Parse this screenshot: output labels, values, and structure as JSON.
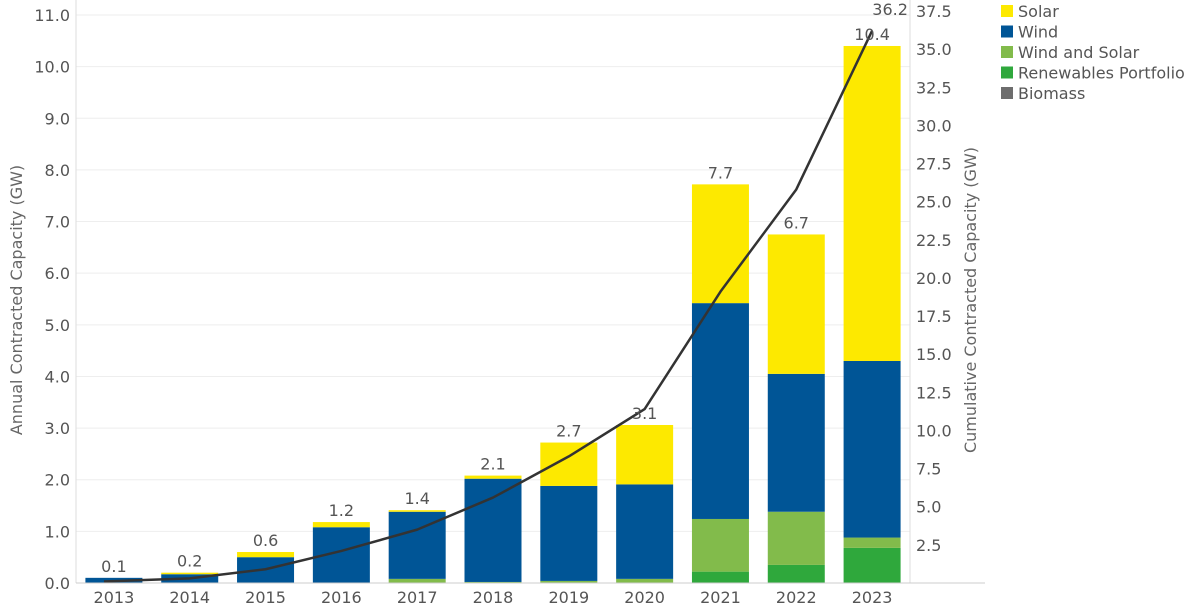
{
  "chart_data": {
    "type": "bar",
    "stacked": true,
    "categories": [
      "2013",
      "2014",
      "2015",
      "2016",
      "2017",
      "2018",
      "2019",
      "2020",
      "2021",
      "2022",
      "2023"
    ],
    "series": [
      {
        "name": "Biomass",
        "color": "#6d6d6d",
        "values": [
          0,
          0,
          0,
          0,
          0,
          0,
          0,
          0,
          0,
          0,
          0
        ]
      },
      {
        "name": "Renewables Portfolio",
        "color": "#2fa83c",
        "values": [
          0,
          0,
          0,
          0,
          0,
          0,
          0,
          0,
          0.22,
          0.35,
          0.68
        ]
      },
      {
        "name": "Wind and Solar",
        "color": "#82bb4b",
        "values": [
          0,
          0,
          0,
          0,
          0.08,
          0.02,
          0.04,
          0.08,
          1.02,
          1.03,
          0.2
        ]
      },
      {
        "name": "Wind",
        "color": "#005596",
        "values": [
          0.1,
          0.17,
          0.5,
          1.08,
          1.3,
          2.0,
          1.84,
          1.83,
          4.18,
          2.67,
          3.42
        ]
      },
      {
        "name": "Solar",
        "color": "#fde900",
        "values": [
          0,
          0.03,
          0.1,
          0.1,
          0.03,
          0.06,
          0.84,
          1.15,
          2.3,
          2.7,
          6.1
        ]
      }
    ],
    "totals": [
      "0.1",
      "0.2",
      "0.6",
      "1.2",
      "1.4",
      "2.1",
      "2.7",
      "3.1",
      "7.7",
      "6.7",
      "10.4"
    ],
    "line": {
      "name": "Cumulative Contracted Capacity",
      "color": "#333333",
      "values": [
        0.1,
        0.3,
        0.9,
        2.1,
        3.5,
        5.6,
        8.3,
        11.4,
        19.1,
        25.8,
        36.2
      ],
      "end_label": "36.2"
    },
    "ylabel": "Annual Contracted Capacity (GW)",
    "y2label": "Cumulative Contracted Capacity (GW)",
    "ylim": [
      0,
      11.0
    ],
    "y2lim": [
      0,
      37.5
    ],
    "yticks": [
      "0.0",
      "1.0",
      "2.0",
      "3.0",
      "4.0",
      "5.0",
      "6.0",
      "7.0",
      "8.0",
      "9.0",
      "10.0",
      "11.0"
    ],
    "y2ticks": [
      "2.5",
      "5.0",
      "7.5",
      "10.0",
      "12.5",
      "15.0",
      "17.5",
      "20.0",
      "22.5",
      "25.0",
      "27.5",
      "30.0",
      "32.5",
      "35.0",
      "37.5"
    ],
    "grid": true,
    "legend": {
      "position": "top-right",
      "items": [
        {
          "label": "Solar",
          "color": "#fde900"
        },
        {
          "label": "Wind",
          "color": "#005596"
        },
        {
          "label": "Wind and Solar",
          "color": "#82bb4b"
        },
        {
          "label": "Renewables Portfolio",
          "color": "#2fa83c"
        },
        {
          "label": "Biomass",
          "color": "#6d6d6d"
        }
      ]
    }
  }
}
